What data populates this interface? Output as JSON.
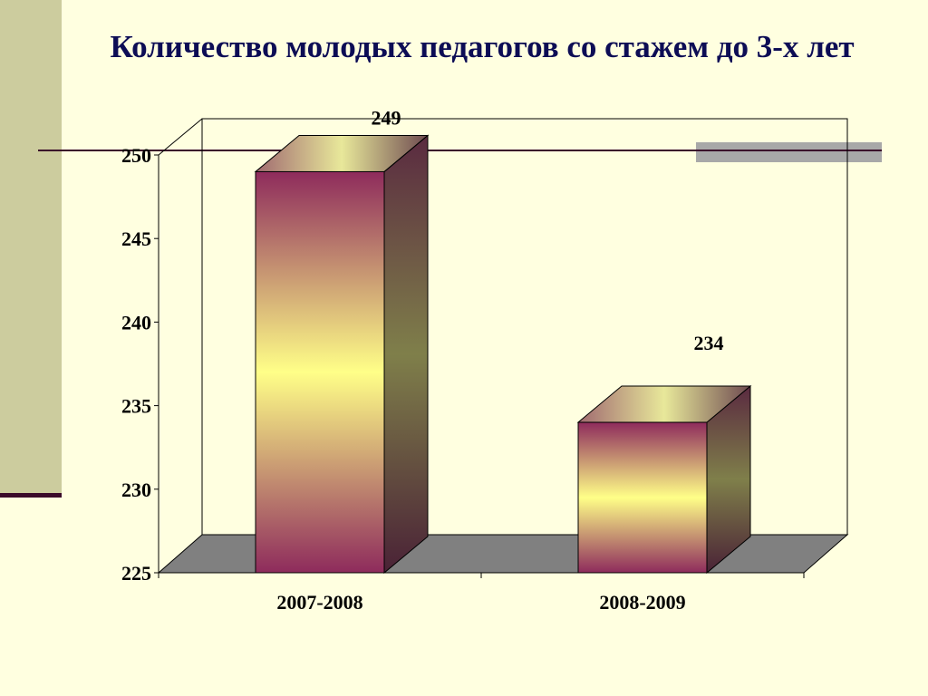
{
  "title": "Количество молодых педагогов со стажем до 3-х лет",
  "colors": {
    "background": "#ffffe0",
    "accent_band": "#cccc9e",
    "title_color": "#0d0d55",
    "bar_magenta": "#8e2b5c",
    "bar_yellow": "#ffff88",
    "floor": "#808080"
  },
  "chart_data": {
    "type": "bar",
    "categories": [
      "2007-2008",
      "2008-2009"
    ],
    "values": [
      249,
      234
    ],
    "data_labels": [
      "249",
      "234"
    ],
    "title": "Количество молодых педагогов со стажем до 3-х лет",
    "xlabel": "",
    "ylabel": "",
    "ylim": [
      225,
      250
    ],
    "yticks": [
      "225",
      "230",
      "235",
      "240",
      "245",
      "250"
    ],
    "grid": false,
    "legend": "none",
    "style": "3d"
  }
}
